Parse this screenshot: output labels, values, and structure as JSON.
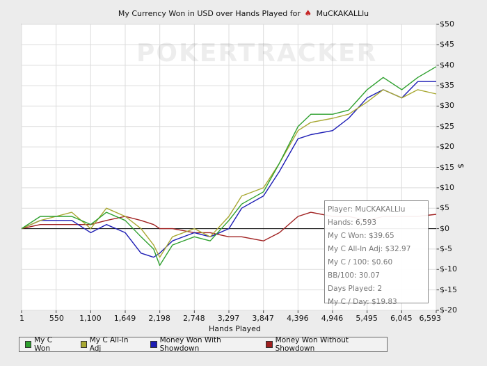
{
  "title": {
    "text": "My Currency Won in USD over Hands Played for",
    "player": "MuCKAKALLlu",
    "icon": "spade-icon"
  },
  "watermark": "POKERTRACKER",
  "colors": {
    "my_c_won": "#2ea02e",
    "my_c_allin_adj": "#a8a832",
    "money_with_showdown": "#1c1cb4",
    "money_without_showdown": "#a02020"
  },
  "tooltip": {
    "player": "Player: MuCKAKALLlu",
    "hands": "Hands: 6,593",
    "my_c_won": "My C Won: $39.65",
    "my_c_allin_adj": "My C All-In Adj: $32.97",
    "my_c_per_100": "My C / 100: $0.60",
    "bb_per_100": "BB/100: 30.07",
    "days_played": "Days Played: 2",
    "my_c_per_day": "My C / Day: $19.83"
  },
  "chart_data": {
    "type": "line",
    "title": "My Currency Won in USD over Hands Played for MuCKAKALLlu",
    "xlabel": "Hands Played",
    "ylabel": "$",
    "xlim": [
      1,
      6593
    ],
    "ylim": [
      -20,
      50
    ],
    "x_ticks": [
      "1",
      "550",
      "1,100",
      "1,649",
      "2,198",
      "2,748",
      "3,297",
      "3,847",
      "4,396",
      "4,946",
      "5,495",
      "6,045",
      "6,593"
    ],
    "y_ticks": [
      "$50",
      "$45",
      "$40",
      "$35",
      "$30",
      "$25",
      "$20",
      "$15",
      "$10",
      "$5",
      "$0",
      "$-5",
      "$-10",
      "$-15",
      "$-20"
    ],
    "y_axis_side": "right",
    "grid": true,
    "legend_position": "bottom",
    "x": [
      1,
      300,
      550,
      800,
      1100,
      1350,
      1649,
      1900,
      2100,
      2198,
      2400,
      2748,
      3000,
      3297,
      3500,
      3847,
      4100,
      4396,
      4600,
      4946,
      5200,
      5495,
      5750,
      6045,
      6300,
      6593
    ],
    "series": [
      {
        "name": "My C Won",
        "color": "#2ea02e",
        "values": [
          0,
          3,
          3,
          3,
          1,
          4,
          2,
          -2,
          -5,
          -9,
          -4,
          -2,
          -3,
          2,
          6,
          9,
          16,
          25,
          28,
          28,
          29,
          34,
          37,
          34,
          37,
          39.65
        ]
      },
      {
        "name": "My C All-In Adj",
        "color": "#a8a832",
        "values": [
          0,
          2,
          3,
          4,
          0,
          5,
          3,
          0,
          -4,
          -7,
          -2,
          0,
          -2,
          3,
          8,
          10,
          16,
          24,
          26,
          27,
          28,
          31,
          34,
          32,
          34,
          32.97
        ]
      },
      {
        "name": "Money Won With Showdown",
        "color": "#1c1cb4",
        "values": [
          0,
          2,
          2,
          2,
          -1,
          1,
          -1,
          -6,
          -7,
          -6,
          -3,
          -1,
          -2,
          0,
          5,
          8,
          14,
          22,
          23,
          24,
          27,
          32,
          34,
          32,
          36,
          36
        ]
      },
      {
        "name": "Money Won Without Showdown",
        "color": "#a02020",
        "values": [
          0,
          1,
          1,
          1,
          1,
          2,
          3,
          2,
          1,
          0,
          0,
          -1,
          -1,
          -2,
          -2,
          -3,
          -1,
          3,
          4,
          3,
          3,
          2,
          3,
          3,
          3,
          3.5
        ]
      }
    ]
  }
}
